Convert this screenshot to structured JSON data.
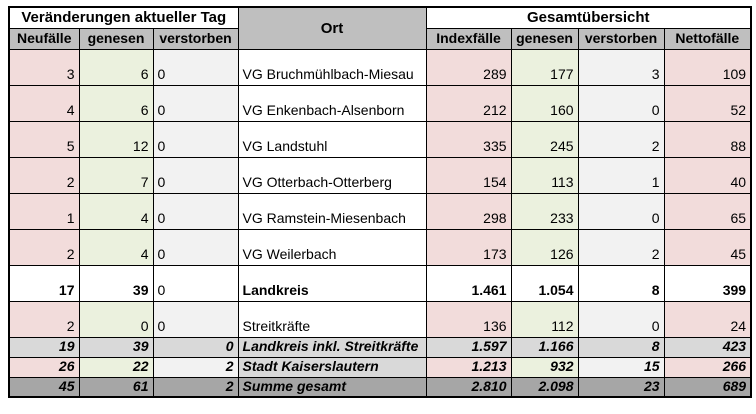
{
  "colors": {
    "border": "#000000",
    "header_gray": "#bfbfbf",
    "pink": "#f2dcdb",
    "green": "#ebf1de",
    "light_gray": "#f2f2f2",
    "summary_gray": "#d9d9d9",
    "total_gray": "#a6a6a6"
  },
  "table": {
    "header": {
      "group_left": "Veränderungen aktueller Tag",
      "ort": "Ort",
      "group_right": "Gesamtübersicht",
      "columns": [
        "Neufälle",
        "genesen",
        "verstorben",
        "Indexfälle",
        "genesen",
        "verstorben",
        "Nettofälle"
      ]
    },
    "rows": [
      {
        "style": "data",
        "cells": [
          "3",
          "6",
          "0",
          "VG Bruchmühlbach-Miesau",
          "289",
          "177",
          "3",
          "109"
        ]
      },
      {
        "style": "data",
        "cells": [
          "4",
          "6",
          "0",
          "VG Enkenbach-Alsenborn",
          "212",
          "160",
          "0",
          "52"
        ]
      },
      {
        "style": "data",
        "cells": [
          "5",
          "12",
          "0",
          "VG Landstuhl",
          "335",
          "245",
          "2",
          "88"
        ]
      },
      {
        "style": "data",
        "cells": [
          "2",
          "7",
          "0",
          "VG Otterbach-Otterberg",
          "154",
          "113",
          "1",
          "40"
        ]
      },
      {
        "style": "data",
        "cells": [
          "1",
          "4",
          "0",
          "VG Ramstein-Miesenbach",
          "298",
          "233",
          "0",
          "65"
        ]
      },
      {
        "style": "data",
        "cells": [
          "2",
          "4",
          "0",
          "VG Weilerbach",
          "173",
          "126",
          "2",
          "45"
        ]
      },
      {
        "style": "landkreis",
        "cells": [
          "17",
          "39",
          "0",
          "Landkreis",
          "1.461",
          "1.054",
          "8",
          "399"
        ]
      },
      {
        "style": "data",
        "cells": [
          "2",
          "0",
          "0",
          "Streitkräfte",
          "136",
          "112",
          "0",
          "24"
        ]
      },
      {
        "style": "sumlight",
        "cells": [
          "19",
          "39",
          "0",
          "Landkreis inkl. Streitkräfte",
          "1.597",
          "1.166",
          "8",
          "423"
        ]
      },
      {
        "style": "sumcolored",
        "cells": [
          "26",
          "22",
          "2",
          "Stadt Kaiserslautern",
          "1.213",
          "932",
          "15",
          "266"
        ]
      },
      {
        "style": "sumdark",
        "cells": [
          "45",
          "61",
          "2",
          "Summe gesamt",
          "2.810",
          "2.098",
          "23",
          "689"
        ]
      }
    ]
  }
}
